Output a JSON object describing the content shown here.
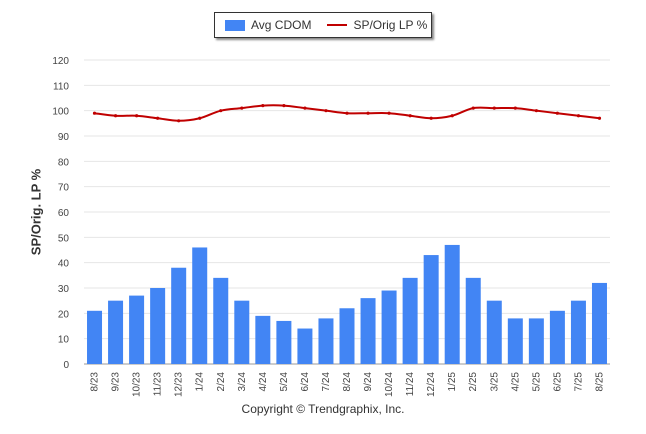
{
  "chart_data": {
    "type": "bar",
    "categories": [
      "8/23",
      "9/23",
      "10/23",
      "11/23",
      "12/23",
      "1/24",
      "2/24",
      "3/24",
      "4/24",
      "5/24",
      "6/24",
      "7/24",
      "8/24",
      "9/24",
      "10/24",
      "11/24",
      "12/24",
      "1/25",
      "2/25",
      "3/25",
      "4/25",
      "5/25",
      "6/25",
      "7/25",
      "8/25"
    ],
    "series": [
      {
        "name": "Avg CDOM",
        "type": "bar",
        "color": "#4285f4",
        "values": [
          21,
          25,
          27,
          30,
          38,
          46,
          34,
          25,
          19,
          17,
          14,
          18,
          22,
          26,
          29,
          34,
          43,
          47,
          34,
          25,
          18,
          18,
          21,
          25,
          32
        ]
      },
      {
        "name": "SP/Orig LP %",
        "type": "line",
        "color": "#c00000",
        "values": [
          99,
          98,
          98,
          97,
          96,
          97,
          100,
          101,
          102,
          102,
          101,
          100,
          99,
          99,
          99,
          98,
          97,
          98,
          101,
          101,
          101,
          100,
          99,
          98,
          97
        ]
      }
    ],
    "ylabel": "SP/Orig. LP %",
    "ylim": [
      0,
      120
    ],
    "yticks": [
      0,
      10,
      20,
      30,
      40,
      50,
      60,
      70,
      80,
      90,
      100,
      110,
      120
    ],
    "grid": true,
    "legend_position": "top-center"
  },
  "footer": "Copyright © Trendgraphix, Inc."
}
